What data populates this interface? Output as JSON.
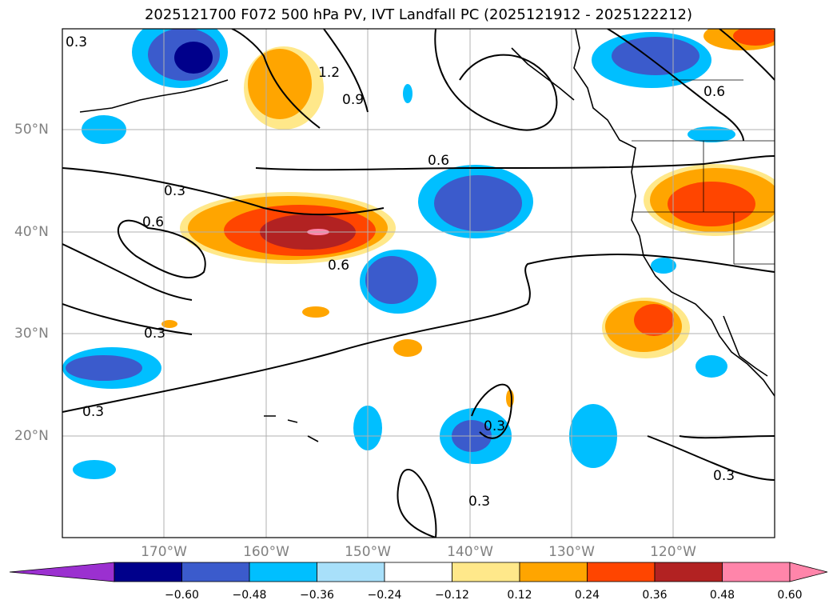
{
  "title": "2025121700 F072 500 hPa PV, IVT Landfall PC (2025121912 - 2025122212)",
  "map": {
    "lat_labels": [
      "50°N",
      "40°N",
      "30°N",
      "20°N"
    ],
    "lon_labels": [
      "170°W",
      "160°W",
      "150°W",
      "140°W",
      "130°W",
      "120°W"
    ],
    "pv_contour_labels": [
      "0.3",
      "0.6",
      "0.9",
      "1.2"
    ]
  },
  "colorbar": {
    "ticks": [
      "−0.60",
      "−0.48",
      "−0.36",
      "−0.24",
      "−0.12",
      "0.12",
      "0.24",
      "0.36",
      "0.48",
      "0.60"
    ],
    "colors": [
      "#9b30d0",
      "#00008b",
      "#3b5bcc",
      "#00bfff",
      "#a8e0fa",
      "#ffffff",
      "#ffe88a",
      "#ffa500",
      "#ff4500",
      "#b22222",
      "#ff85aa",
      "#ff85aa"
    ]
  }
}
